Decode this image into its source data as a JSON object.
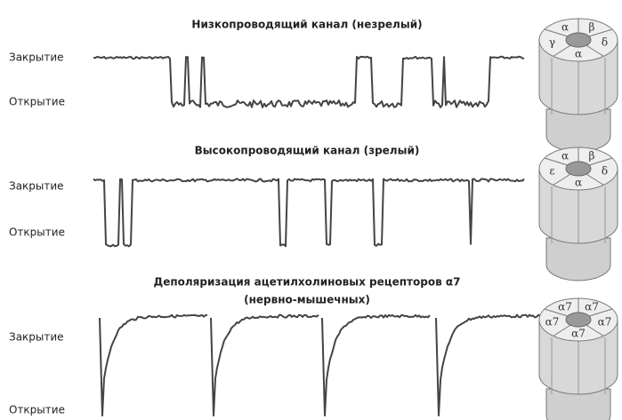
{
  "panels": [
    {
      "title_lines": [
        "Низкопроводящий канал (незрелый)"
      ],
      "closed_label": "Закрытие",
      "open_label": "Открытие",
      "subunits": [
        "α",
        "β",
        "δ",
        "α",
        "γ"
      ]
    },
    {
      "title_lines": [
        "Высокопроводящий канал (зрелый)"
      ],
      "closed_label": "Закрытие",
      "open_label": "Открытие",
      "subunits": [
        "α",
        "β",
        "δ",
        "α",
        "ε"
      ]
    },
    {
      "title_lines": [
        "Деполяризация ацетилхолиновых рецепторов α7",
        "(нервно-мышечных)"
      ],
      "closed_label": "Закрытие",
      "open_label": "Открытие",
      "subunits": [
        "α7",
        "α7",
        "α7",
        "α7",
        "α7"
      ]
    }
  ]
}
